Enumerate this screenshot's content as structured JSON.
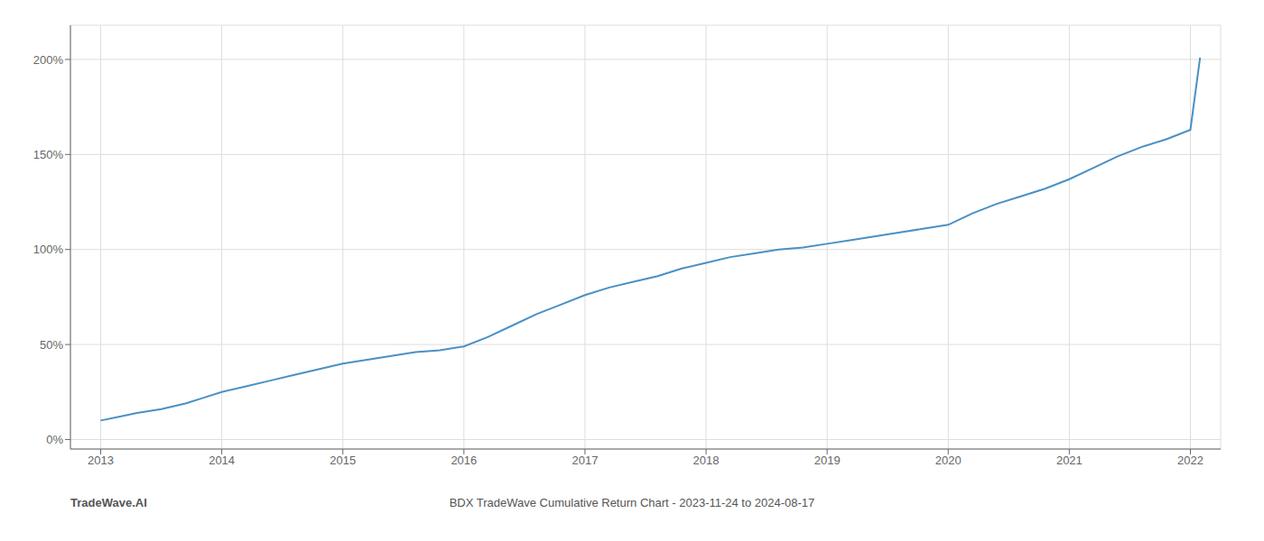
{
  "chart_data": {
    "type": "line",
    "title": "BDX TradeWave Cumulative Return Chart - 2023-11-24 to 2024-08-17",
    "annotations": [
      "TradeWave.AI"
    ],
    "x": [
      2013.0,
      2013.15,
      2013.3,
      2013.5,
      2013.7,
      2013.85,
      2014.0,
      2014.2,
      2014.4,
      2014.6,
      2014.8,
      2015.0,
      2015.2,
      2015.4,
      2015.6,
      2015.8,
      2016.0,
      2016.2,
      2016.4,
      2016.6,
      2016.8,
      2017.0,
      2017.2,
      2017.4,
      2017.6,
      2017.8,
      2018.0,
      2018.2,
      2018.4,
      2018.6,
      2018.8,
      2019.0,
      2019.2,
      2019.4,
      2019.6,
      2019.8,
      2020.0,
      2020.2,
      2020.4,
      2020.6,
      2020.8,
      2021.0,
      2021.2,
      2021.4,
      2021.6,
      2021.8,
      2022.0,
      2022.08
    ],
    "values": [
      10,
      12,
      14,
      16,
      19,
      22,
      25,
      28,
      31,
      34,
      37,
      40,
      42,
      44,
      46,
      47,
      49,
      54,
      60,
      66,
      71,
      76,
      80,
      83,
      86,
      90,
      93,
      96,
      98,
      100,
      101,
      103,
      105,
      107,
      109,
      111,
      113,
      119,
      124,
      128,
      132,
      137,
      143,
      149,
      154,
      158,
      163,
      201
    ],
    "color": "#4a90c4",
    "xlim": [
      2012.75,
      2022.25
    ],
    "xticks": [
      2013,
      2014,
      2015,
      2016,
      2017,
      2018,
      2019,
      2020,
      2021,
      2022
    ],
    "ylim": [
      -5,
      218
    ],
    "yticks": [
      {
        "value": 0,
        "label": "0%"
      },
      {
        "value": 50,
        "label": "50%"
      },
      {
        "value": 100,
        "label": "100%"
      },
      {
        "value": 150,
        "label": "150%"
      },
      {
        "value": 200,
        "label": "200%"
      }
    ],
    "grid": true
  }
}
